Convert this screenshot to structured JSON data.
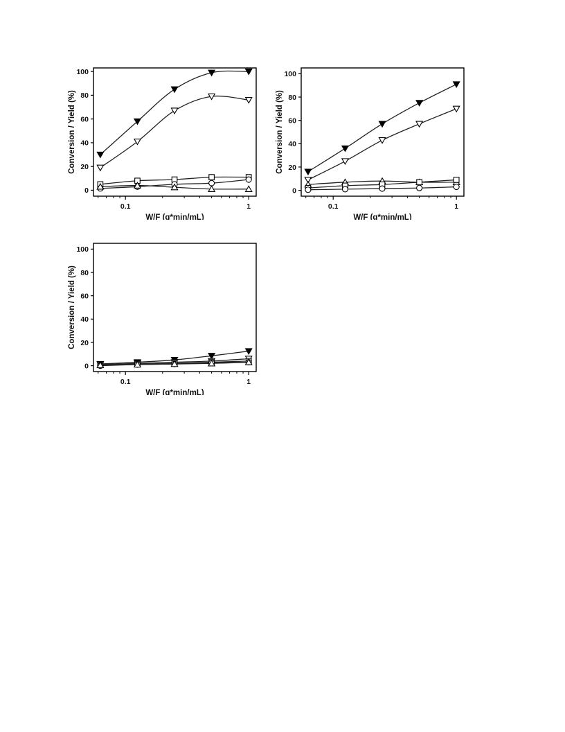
{
  "chart_data": [
    {
      "type": "line",
      "xscale": "log",
      "xlabel": "W/F (g*min/mL)",
      "ylabel": "Conversion / Yield (%)",
      "xlim": [
        0.055,
        1.15
      ],
      "ylim": [
        -5,
        103
      ],
      "xticks": [
        {
          "value": 0.1,
          "label": "0.1"
        },
        {
          "value": 1,
          "label": "1"
        }
      ],
      "yticks": [
        0,
        20,
        40,
        60,
        80,
        100
      ],
      "x": [
        0.0625,
        0.125,
        0.25,
        0.5,
        1
      ],
      "series": [
        {
          "marker": "triangle-down-filled",
          "values": [
            30,
            58,
            85,
            99,
            100
          ]
        },
        {
          "marker": "triangle-down-open",
          "values": [
            19,
            41,
            67,
            79,
            76
          ]
        },
        {
          "marker": "square-open",
          "values": [
            5,
            8,
            9,
            11,
            11
          ]
        },
        {
          "marker": "circle-open",
          "values": [
            1.5,
            3,
            5,
            6,
            9
          ]
        },
        {
          "marker": "triangle-up-open",
          "values": [
            3,
            4,
            2.5,
            1,
            1
          ]
        }
      ]
    },
    {
      "type": "line",
      "xscale": "log",
      "xlabel": "W/F (g*min/mL)",
      "ylabel": "Conversion / Yield (%)",
      "xlim": [
        0.055,
        1.15
      ],
      "ylim": [
        -5,
        105
      ],
      "xticks": [
        {
          "value": 0.1,
          "label": "0.1"
        },
        {
          "value": 1,
          "label": "1"
        }
      ],
      "yticks": [
        0,
        20,
        40,
        60,
        80,
        100
      ],
      "x": [
        0.0625,
        0.125,
        0.25,
        0.5,
        1
      ],
      "series": [
        {
          "marker": "triangle-down-filled",
          "values": [
            16,
            36,
            57,
            75,
            91
          ]
        },
        {
          "marker": "triangle-down-open",
          "values": [
            9,
            25,
            43,
            57,
            70
          ]
        },
        {
          "marker": "triangle-up-open",
          "values": [
            5,
            7,
            8,
            7,
            7
          ]
        },
        {
          "marker": "square-open",
          "values": [
            2,
            4,
            5,
            7,
            9
          ]
        },
        {
          "marker": "circle-open",
          "values": [
            0.5,
            1,
            1.5,
            2,
            3
          ]
        }
      ]
    },
    {
      "type": "line",
      "xscale": "log",
      "xlabel": "W/F (g*min/mL)",
      "ylabel": "Conversion / Yield (%)",
      "xlim": [
        0.055,
        1.15
      ],
      "ylim": [
        -5,
        105
      ],
      "xticks": [
        {
          "value": 0.1,
          "label": "0.1"
        },
        {
          "value": 1,
          "label": "1"
        }
      ],
      "yticks": [
        0,
        20,
        40,
        60,
        80,
        100
      ],
      "x": [
        0.0625,
        0.125,
        0.25,
        0.5,
        1
      ],
      "series": [
        {
          "marker": "triangle-down-filled",
          "values": [
            1.5,
            3,
            5,
            8.5,
            12.5
          ]
        },
        {
          "marker": "triangle-down-open",
          "values": [
            1,
            2,
            3,
            4,
            6
          ]
        },
        {
          "marker": "square-open",
          "values": [
            0.5,
            1.5,
            2,
            3,
            4
          ]
        },
        {
          "marker": "circle-open",
          "values": [
            0,
            1,
            1.5,
            2.5,
            3
          ]
        },
        {
          "marker": "triangle-up-open",
          "values": [
            0.5,
            1,
            1.5,
            2,
            3
          ]
        }
      ]
    }
  ]
}
